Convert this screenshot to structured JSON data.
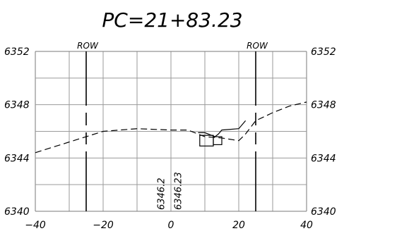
{
  "chart_data": {
    "type": "line",
    "title": "PC=21+83.23",
    "xlim": [
      -40,
      40
    ],
    "ylim": [
      6340,
      6352
    ],
    "x_ticks": [
      -40,
      -20,
      0,
      20,
      40
    ],
    "x_tick_labels": [
      "−40",
      "−20",
      "0",
      "20",
      "40"
    ],
    "y_ticks": [
      6340,
      6344,
      6348,
      6352
    ],
    "y_tick_labels": [
      "6340",
      "6344",
      "6348",
      "6352"
    ],
    "grid": true,
    "grid_x_step": 10,
    "grid_y_step": 2,
    "row_lines": [
      {
        "label": "ROW",
        "x": -25
      },
      {
        "label": "ROW",
        "x": 25
      }
    ],
    "series": [
      {
        "style": "dashed",
        "x": [
          -40,
          -30,
          -20,
          -10,
          0,
          5,
          10,
          15,
          20,
          22,
          25,
          30,
          35,
          40
        ],
        "y": [
          6344.4,
          6345.2,
          6346.0,
          6346.2,
          6346.1,
          6346.1,
          6345.6,
          6345.5,
          6345.3,
          6345.8,
          6346.8,
          6347.4,
          6347.9,
          6348.2
        ]
      },
      {
        "style": "solid",
        "x": [
          8,
          10,
          12,
          13,
          14,
          15,
          20,
          22
        ],
        "y": [
          6345.9,
          6345.9,
          6345.7,
          6345.6,
          6345.8,
          6346.1,
          6346.2,
          6346.8
        ]
      }
    ],
    "structures": [
      {
        "x1": 8.5,
        "x2": 12.5,
        "y1": 6344.9,
        "y2": 6345.7
      },
      {
        "x1": 12.5,
        "x2": 15.0,
        "y1": 6345.0,
        "y2": 6345.6
      }
    ],
    "annotations": [
      {
        "text": "6346.2",
        "x": -2
      },
      {
        "text": "6346.23",
        "x": 3
      }
    ]
  }
}
